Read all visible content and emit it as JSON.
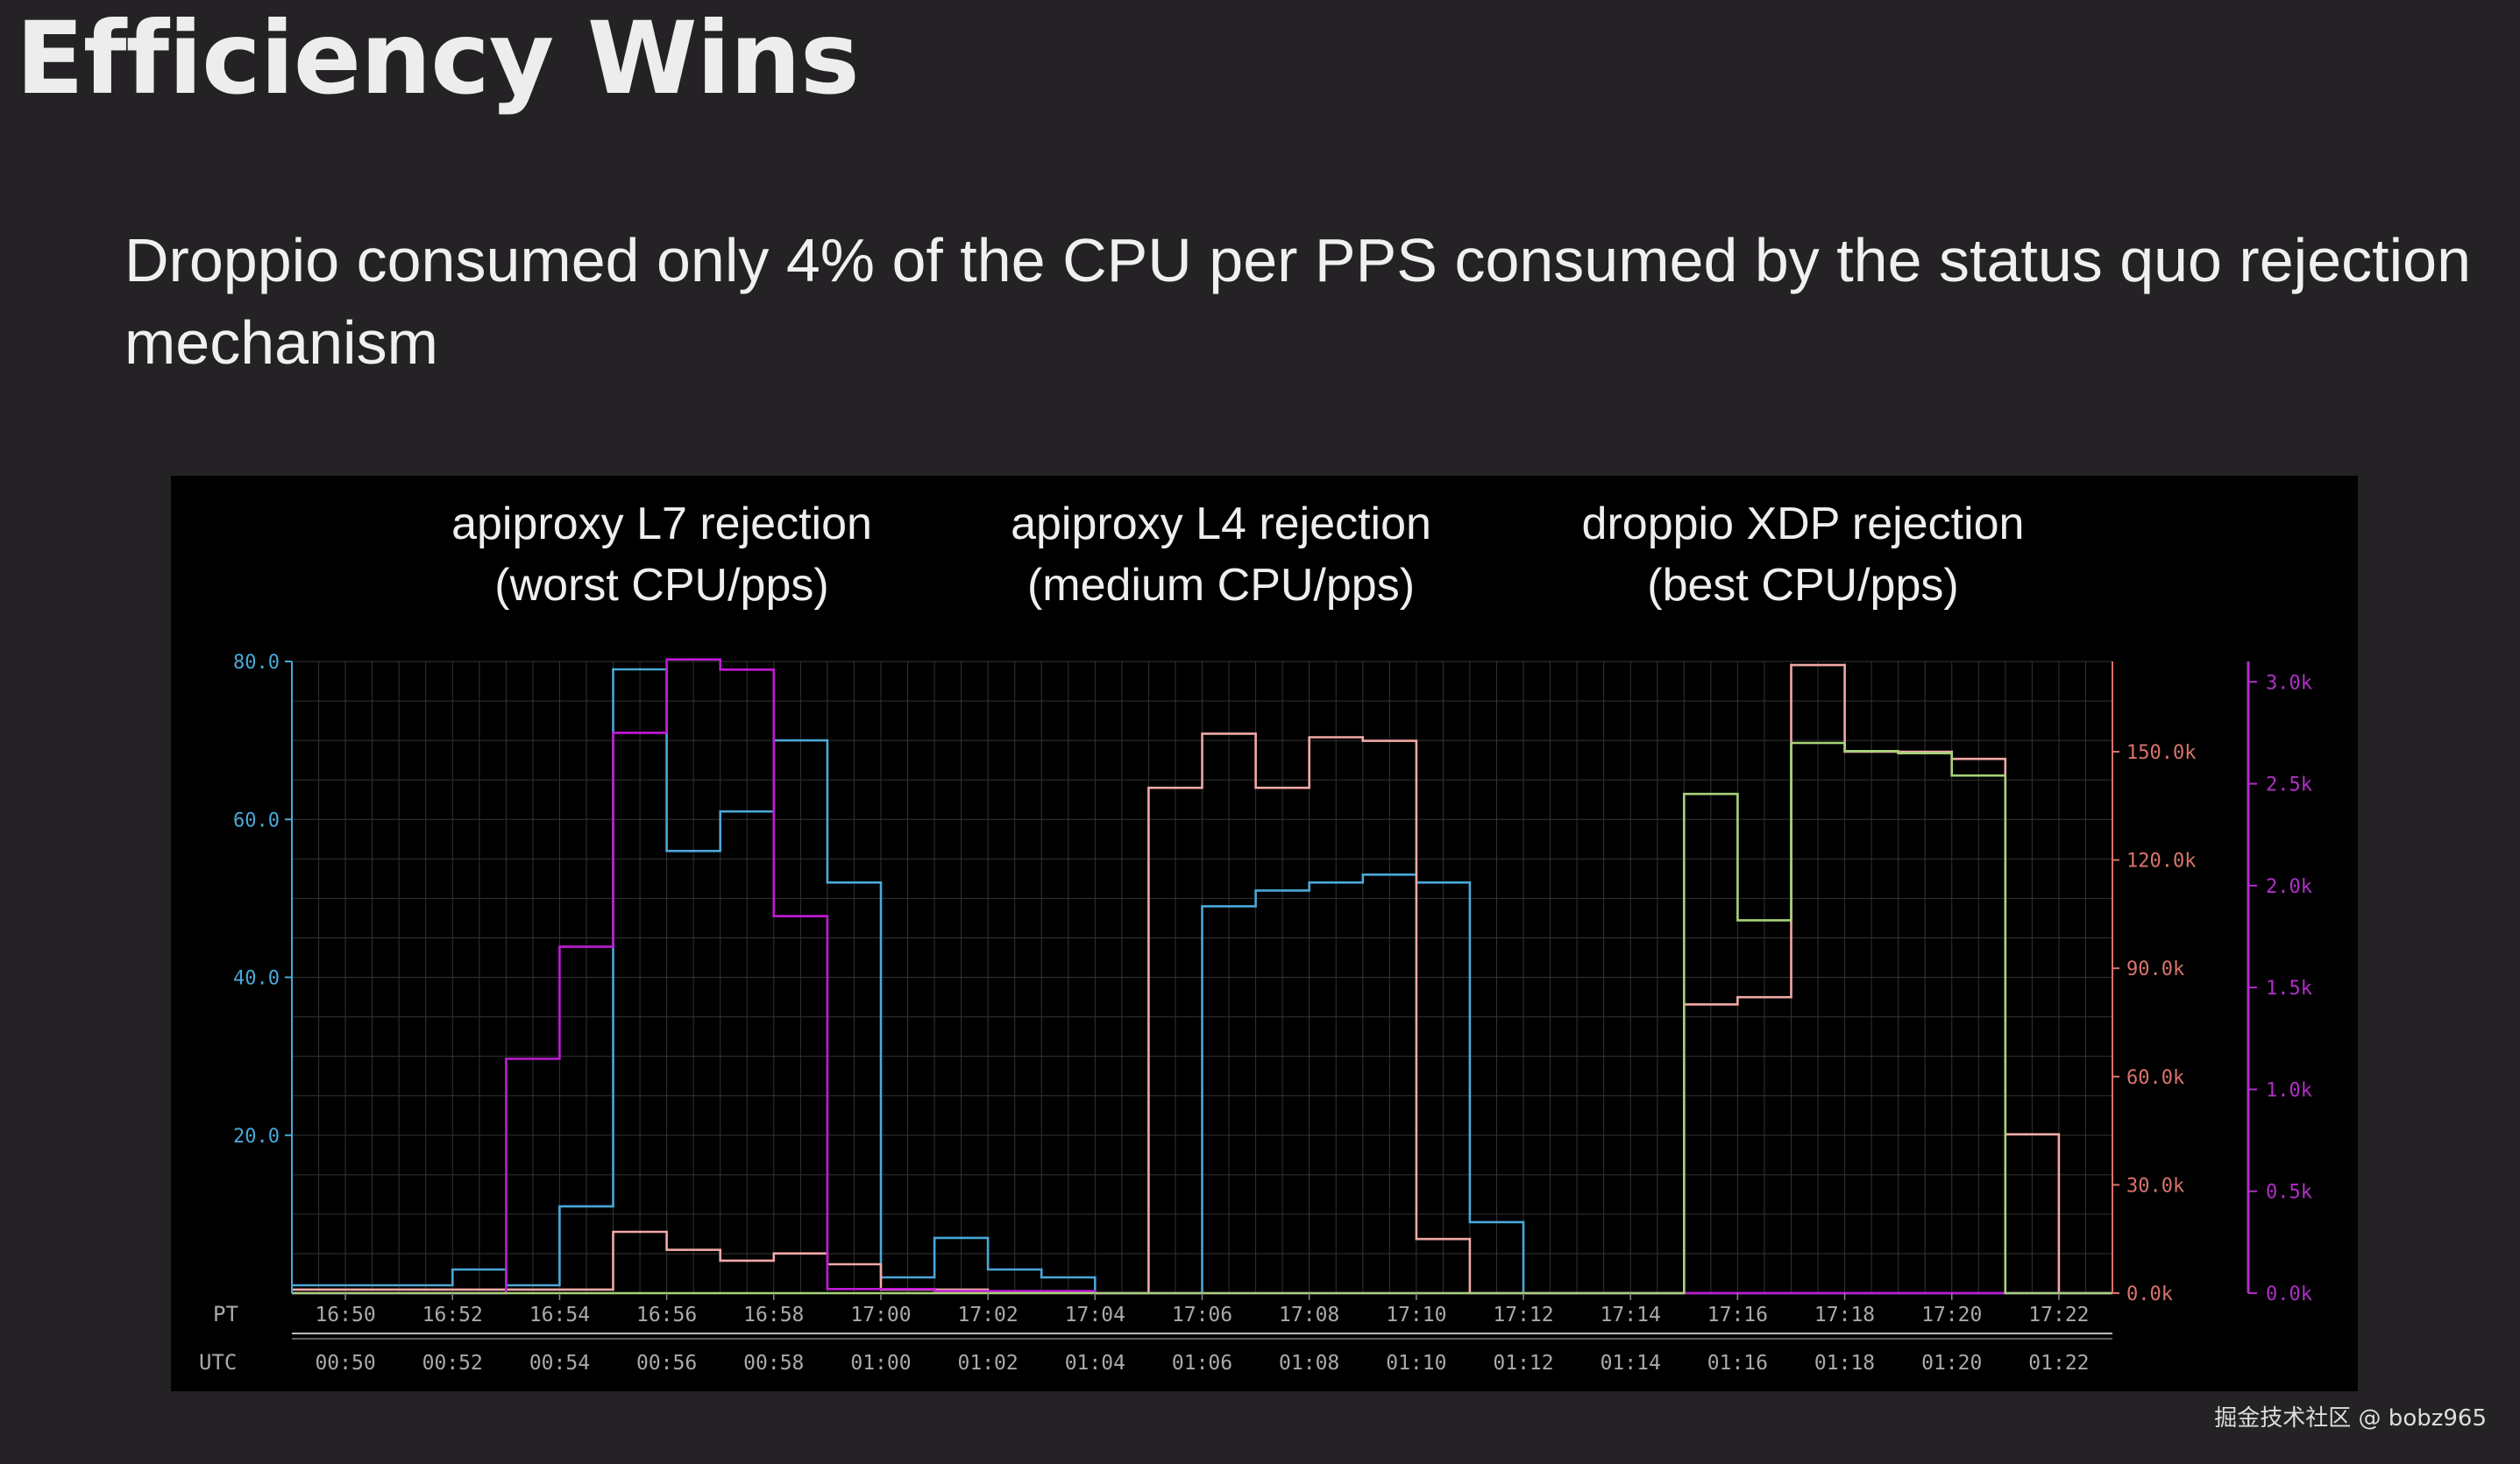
{
  "slide": {
    "title": "Efficiency Wins",
    "subtitle": "Droppio consumed only 4% of the CPU per PPS consumed by the status quo rejection mechanism"
  },
  "panel_labels": [
    {
      "line1": "apiproxy L7 rejection",
      "line2": "(worst CPU/pps)"
    },
    {
      "line1": "apiproxy L4 rejection",
      "line2": "(medium CPU/pps)"
    },
    {
      "line1": "droppio XDP rejection",
      "line2": "(best CPU/pps)"
    }
  ],
  "watermark": "掘金技术社区 @ bobz965",
  "colors": {
    "background": "#242224",
    "panel": "#000000",
    "grid": "#333333",
    "blue": "#4aa8d8",
    "pink": "#f1a9a6",
    "magenta": "#c21ad6",
    "green": "#a8d27a",
    "axis_text": "#aaaaaa",
    "left_axis": "#4aa8d8",
    "right1_axis": "#d9746c",
    "right2_axis": "#b12fc8"
  },
  "chart_data": {
    "type": "line",
    "step": true,
    "x_row_labels": {
      "pt": "PT",
      "utc": "UTC"
    },
    "x_ticks_pt": [
      "16:50",
      "16:52",
      "16:54",
      "16:56",
      "16:58",
      "17:00",
      "17:02",
      "17:04",
      "17:06",
      "17:08",
      "17:10",
      "17:12",
      "17:14",
      "17:16",
      "17:18",
      "17:20",
      "17:22"
    ],
    "x_ticks_utc": [
      "00:50",
      "00:52",
      "00:54",
      "00:56",
      "00:58",
      "01:00",
      "01:02",
      "01:04",
      "01:06",
      "01:08",
      "01:10",
      "01:12",
      "01:14",
      "01:16",
      "01:18",
      "01:20",
      "01:22"
    ],
    "x_range_minutes": [
      -1,
      33
    ],
    "axes": {
      "left": {
        "min": 0,
        "max": 80,
        "ticks": [
          "20.0",
          "40.0",
          "60.0",
          "80.0"
        ],
        "tick_values": [
          20,
          40,
          60,
          80
        ]
      },
      "right1": {
        "min": 0,
        "max": 175000,
        "ticks": [
          "0.0k",
          "30.0k",
          "60.0k",
          "90.0k",
          "120.0k",
          "150.0k"
        ],
        "tick_values": [
          0,
          30000,
          60000,
          90000,
          120000,
          150000
        ]
      },
      "right2": {
        "min": 0,
        "max": 3100,
        "ticks": [
          "0.0k",
          "0.5k",
          "1.0k",
          "1.5k",
          "2.0k",
          "2.5k",
          "3.0k"
        ],
        "tick_values": [
          0,
          500,
          1000,
          1500,
          2000,
          2500,
          3000
        ]
      }
    },
    "series": [
      {
        "color_key": "blue",
        "axis": "left",
        "edges": [
          -1,
          0,
          1,
          2,
          3,
          4,
          5,
          6,
          7,
          8,
          9,
          10,
          11,
          12,
          13,
          14,
          15,
          16,
          17,
          18,
          19,
          20,
          21,
          22,
          23,
          24,
          25,
          26,
          27,
          28,
          29,
          30,
          31,
          32,
          33
        ],
        "values": [
          1,
          1,
          1,
          3,
          1,
          11,
          79,
          56,
          61,
          70,
          52,
          2,
          7,
          3,
          2,
          0,
          0,
          49,
          51,
          52,
          53,
          52,
          9,
          0,
          0,
          0,
          0,
          0,
          0,
          0,
          0,
          0,
          0,
          0
        ]
      },
      {
        "color_key": "pink",
        "axis": "right1",
        "edges": [
          -1,
          0,
          1,
          2,
          3,
          4,
          5,
          6,
          7,
          8,
          9,
          10,
          11,
          12,
          13,
          14,
          15,
          16,
          17,
          18,
          19,
          20,
          21,
          22,
          23,
          24,
          25,
          26,
          27,
          28,
          29,
          30,
          31,
          32,
          33
        ],
        "values": [
          1000,
          1000,
          1000,
          1000,
          1000,
          1000,
          17000,
          12000,
          9000,
          11000,
          8000,
          1000,
          1000,
          500,
          500,
          0,
          140000,
          155000,
          140000,
          154000,
          153000,
          15000,
          0,
          0,
          0,
          0,
          80000,
          82000,
          174000,
          150000,
          150000,
          148000,
          44000,
          0
        ]
      },
      {
        "color_key": "magenta",
        "axis": "right2",
        "edges": [
          -1,
          0,
          1,
          2,
          3,
          4,
          5,
          6,
          7,
          8,
          9,
          10,
          11,
          12,
          13,
          14,
          15,
          16,
          17,
          18,
          19,
          20,
          21,
          22,
          23,
          24,
          25,
          26,
          27,
          28,
          29,
          30,
          31,
          32,
          33
        ],
        "values": [
          0,
          0,
          0,
          0,
          1150,
          1700,
          2750,
          3110,
          3060,
          1850,
          20,
          20,
          10,
          10,
          10,
          0,
          0,
          0,
          0,
          0,
          0,
          0,
          0,
          0,
          0,
          0,
          0,
          0,
          0,
          0,
          0,
          0,
          0,
          0
        ]
      },
      {
        "color_key": "green",
        "axis": "right2",
        "edges": [
          -1,
          0,
          1,
          2,
          3,
          4,
          5,
          6,
          7,
          8,
          9,
          10,
          11,
          12,
          13,
          14,
          15,
          16,
          17,
          18,
          19,
          20,
          21,
          22,
          23,
          24,
          25,
          26,
          27,
          28,
          29,
          30,
          31,
          32,
          33
        ],
        "values": [
          0,
          0,
          0,
          0,
          0,
          0,
          0,
          0,
          0,
          0,
          0,
          0,
          0,
          0,
          0,
          0,
          0,
          0,
          0,
          0,
          0,
          0,
          0,
          0,
          0,
          0,
          2450,
          1830,
          2700,
          2660,
          2650,
          2540,
          0,
          0
        ]
      }
    ]
  }
}
